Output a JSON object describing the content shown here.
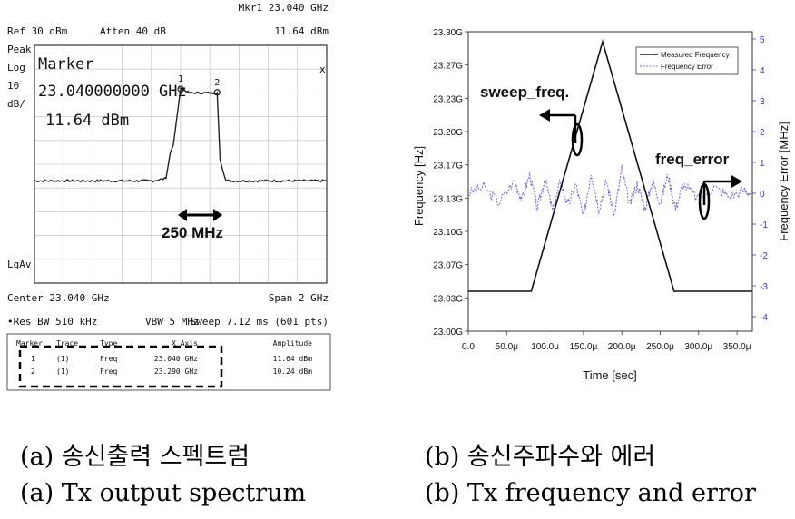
{
  "spectrum_panel": {
    "header": {
      "mkr": "Mkr1  23.040 GHz",
      "ref": "Ref 30 dBm",
      "atten": "Atten 40 dB",
      "mkr_amp": "11.64 dBm",
      "peak": "Peak",
      "log": "Log",
      "ten": "10",
      "dbdiv": "dB/",
      "lgav": "LgAv"
    },
    "marker_box": {
      "title": "Marker",
      "freq": "23.040000000 GHz",
      "amp": "11.64 dBm",
      "close": "x"
    },
    "marker_labels": [
      "1",
      "2"
    ],
    "bandwidth_label": "250 MHz",
    "footer": {
      "center": "Center 23.040 GHz",
      "span": "Span 2 GHz",
      "res_bw": "•Res BW 510 kHz",
      "vbw": "VBW 5 MHz",
      "sweep": "Sweep 7.12 ms (601 pts)"
    },
    "table": {
      "headers": [
        "Marker",
        "Trace",
        "Type",
        "X Axis",
        "Amplitude"
      ],
      "rows": [
        [
          "1",
          "(1)",
          "Freq",
          "23.040 GHz",
          "11.64 dBm"
        ],
        [
          "2",
          "(1)",
          "Freq",
          "23.290 GHz",
          "10.24 dBm"
        ]
      ]
    }
  },
  "freq_panel": {
    "annotations": {
      "sweep": "sweep_freq.",
      "error": "freq_error"
    }
  },
  "chart_data": [
    {
      "type": "line",
      "title": "",
      "xlabel": "",
      "ylabel": "",
      "xlim": [
        22.04,
        24.04
      ],
      "ylim": [
        -70,
        30
      ],
      "y_reference": 30,
      "y_scale_per_div": 10,
      "series": [
        {
          "x": [
            22.04,
            22.5,
            22.85,
            22.94,
            22.97,
            22.99,
            23.04,
            23.1,
            23.2,
            23.28,
            23.29,
            23.31,
            23.33,
            23.35,
            23.6,
            24.04
          ],
          "values": [
            -27,
            -27,
            -27,
            -26,
            -15,
            -12,
            12,
            10,
            10,
            10,
            10,
            -18,
            -23,
            -27,
            -27,
            -27
          ]
        }
      ],
      "markers": [
        {
          "label": "1",
          "x": 23.04,
          "y": 11.64
        },
        {
          "label": "2",
          "x": 23.29,
          "y": 10.24
        }
      ]
    },
    {
      "type": "line",
      "title": "",
      "xlabel": "Time [sec]",
      "ylabel": "Frequency [Hz]",
      "y2label": "Frequency Error [MHz]",
      "x_ticks": [
        "0.0",
        "50.0μ",
        "100.0μ",
        "150.0μ",
        "200.0μ",
        "250.0μ",
        "300.0μ",
        "350.0μ"
      ],
      "y_ticks": [
        "23.00G",
        "23.03G",
        "23.07G",
        "23.10G",
        "23.13G",
        "23.17G",
        "23.20G",
        "23.23G",
        "23.27G",
        "23.30G"
      ],
      "y2_ticks": [
        "5",
        "4",
        "3",
        "2",
        "1",
        "0",
        "-1",
        "-2",
        "-3",
        "-4"
      ],
      "xlim": [
        0,
        370
      ],
      "ylim": [
        23.0,
        23.3
      ],
      "y2lim": [
        -4,
        5
      ],
      "legend": "top-right",
      "series": [
        {
          "name": "Measured Frequency",
          "axis": "left",
          "x": [
            0,
            82,
            175,
            268,
            370
          ],
          "values": [
            23.04,
            23.04,
            23.29,
            23.04,
            23.04
          ]
        },
        {
          "name": "Frequency Error",
          "axis": "right",
          "x": [
            0,
            20,
            40,
            60,
            70,
            80,
            90,
            100,
            110,
            120,
            130,
            140,
            150,
            160,
            170,
            180,
            190,
            200,
            210,
            220,
            230,
            240,
            250,
            260,
            270,
            280,
            300,
            320,
            340,
            360,
            370
          ],
          "values": [
            0,
            0.2,
            -0.3,
            0.4,
            -0.2,
            0.6,
            -0.5,
            0.5,
            -0.6,
            0.4,
            -0.4,
            0.3,
            -0.8,
            0.7,
            -0.5,
            0.4,
            -0.7,
            0.8,
            -0.4,
            0.3,
            -0.5,
            0.4,
            -0.3,
            0.6,
            -0.5,
            0.3,
            -0.2,
            0.2,
            -0.1,
            0.1,
            0
          ]
        }
      ]
    }
  ],
  "captions": {
    "a_kr": "(a) 송신출력 스펙트럼",
    "b_kr": "(b) 송신주파수와 에러",
    "a_en": "(a) Tx output spectrum",
    "b_en": "(b) Tx frequency and error"
  }
}
